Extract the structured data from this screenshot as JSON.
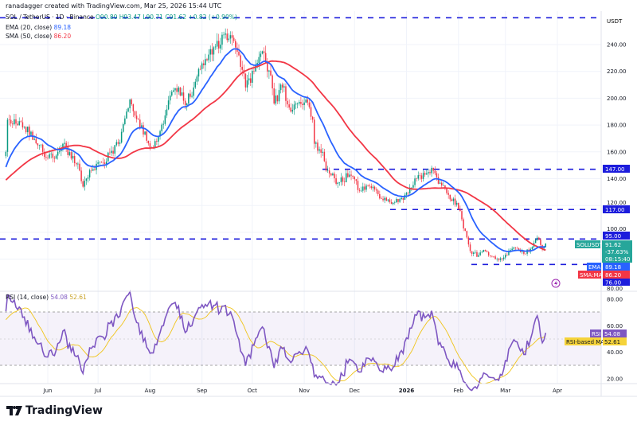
{
  "header": {
    "credit": "ranadagger created with TradingView.com, Mar 25, 2026 15:44 UTC"
  },
  "legend": {
    "symbol": "SOL / TetherUS · 1D · Binance",
    "open": "O90.80",
    "high": "H93.47",
    "low": "L90.71",
    "close": "C91.62",
    "change": "+0.82 (+0.90%)",
    "ema_label": "EMA (20, close)",
    "ema_value": "89.18",
    "sma_label": "SMA (50, close)",
    "sma_value": "86.20"
  },
  "rsi_legend": {
    "label": "RSI (14, close)",
    "rsi": "54.08",
    "ma": "52.61"
  },
  "axis": {
    "currency": "USDT",
    "price_ticks": [
      "240.00",
      "220.00",
      "200.00",
      "180.00",
      "160.00",
      "140.00",
      "120.00",
      "100.00",
      "80.00"
    ],
    "rsi_ticks": [
      "80.00",
      "60.00",
      "40.00",
      "20.00"
    ],
    "months": [
      "Jun",
      "Jul",
      "Aug",
      "Sep",
      "Oct",
      "Nov",
      "Dec",
      "2026",
      "Feb",
      "Mar",
      "Apr"
    ]
  },
  "price_labels": {
    "level_147": "147.00",
    "level_117": "117.00",
    "level_95": "95.00",
    "level_76": "76.00",
    "symbol_tag": "SOLUSDT",
    "last": "91.62",
    "pct": "-37.63%",
    "countdown": "08:15:40",
    "ema_tag": "EMA",
    "ema_value": "89.18",
    "sma_tag": "SMA:MA",
    "sma_value": "86.20",
    "rsi_tag": "RSI",
    "rsi_value": "54.08",
    "rsima_tag": "RSI-based MA",
    "rsima_value": "52.61"
  },
  "branding": {
    "name": "TradingView"
  },
  "colors": {
    "up": "#089981",
    "down": "#f23645",
    "ema": "#2962ff",
    "sma": "#f23645",
    "levels": "#1c1cdc",
    "rsi": "#7e57c2",
    "rsi_ma": "#f0c419"
  },
  "chart_data": {
    "type": "candlestick",
    "symbol": "SOLUSDT",
    "ylim": [
      60,
      262
    ],
    "horizontal_levels": [
      260,
      147,
      117,
      95,
      76
    ],
    "close_waypoints": [
      [
        "2025-05-07",
        160
      ],
      [
        "2025-05-08",
        184
      ],
      [
        "2025-05-13",
        181
      ],
      [
        "2025-05-22",
        175
      ],
      [
        "2025-05-29",
        160
      ],
      [
        "2025-06-05",
        155
      ],
      [
        "2025-06-10",
        166
      ],
      [
        "2025-06-20",
        146
      ],
      [
        "2025-06-22",
        134
      ],
      [
        "2025-06-27",
        146
      ],
      [
        "2025-07-04",
        152
      ],
      [
        "2025-07-13",
        166
      ],
      [
        "2025-07-20",
        199
      ],
      [
        "2025-07-25",
        184
      ],
      [
        "2025-08-01",
        163
      ],
      [
        "2025-08-06",
        172
      ],
      [
        "2025-08-13",
        202
      ],
      [
        "2025-08-18",
        208
      ],
      [
        "2025-08-23",
        196
      ],
      [
        "2025-08-27",
        208
      ],
      [
        "2025-09-01",
        226
      ],
      [
        "2025-09-08",
        238
      ],
      [
        "2025-09-18",
        247
      ],
      [
        "2025-09-23",
        232
      ],
      [
        "2025-09-27",
        208
      ],
      [
        "2025-10-02",
        220
      ],
      [
        "2025-10-07",
        235
      ],
      [
        "2025-10-12",
        217
      ],
      [
        "2025-10-14",
        196
      ],
      [
        "2025-10-19",
        208
      ],
      [
        "2025-10-24",
        190
      ],
      [
        "2025-10-28",
        196
      ],
      [
        "2025-11-02",
        199
      ],
      [
        "2025-11-06",
        184
      ],
      [
        "2025-11-07",
        166
      ],
      [
        "2025-11-12",
        160
      ],
      [
        "2025-11-14",
        146
      ],
      [
        "2025-11-21",
        137
      ],
      [
        "2025-11-28",
        143
      ],
      [
        "2025-12-05",
        131
      ],
      [
        "2025-12-12",
        134
      ],
      [
        "2025-12-17",
        125
      ],
      [
        "2025-12-24",
        122
      ],
      [
        "2025-12-31",
        128
      ],
      [
        "2026-01-07",
        140
      ],
      [
        "2026-01-12",
        143
      ],
      [
        "2026-01-17",
        146
      ],
      [
        "2026-01-21",
        137
      ],
      [
        "2026-01-26",
        128
      ],
      [
        "2026-01-31",
        122
      ],
      [
        "2026-02-05",
        101
      ],
      [
        "2026-02-08",
        86
      ],
      [
        "2026-02-13",
        83
      ],
      [
        "2026-02-17",
        86
      ],
      [
        "2026-02-22",
        82
      ],
      [
        "2026-02-27",
        80
      ],
      [
        "2026-03-03",
        86
      ],
      [
        "2026-03-08",
        88
      ],
      [
        "2026-03-13",
        84
      ],
      [
        "2026-03-18",
        92
      ],
      [
        "2026-03-20",
        96
      ],
      [
        "2026-03-23",
        88
      ],
      [
        "2026-03-25",
        91.62
      ]
    ],
    "rsi_levels": [
      70,
      30
    ],
    "rsi_ylim": [
      15,
      85
    ]
  }
}
